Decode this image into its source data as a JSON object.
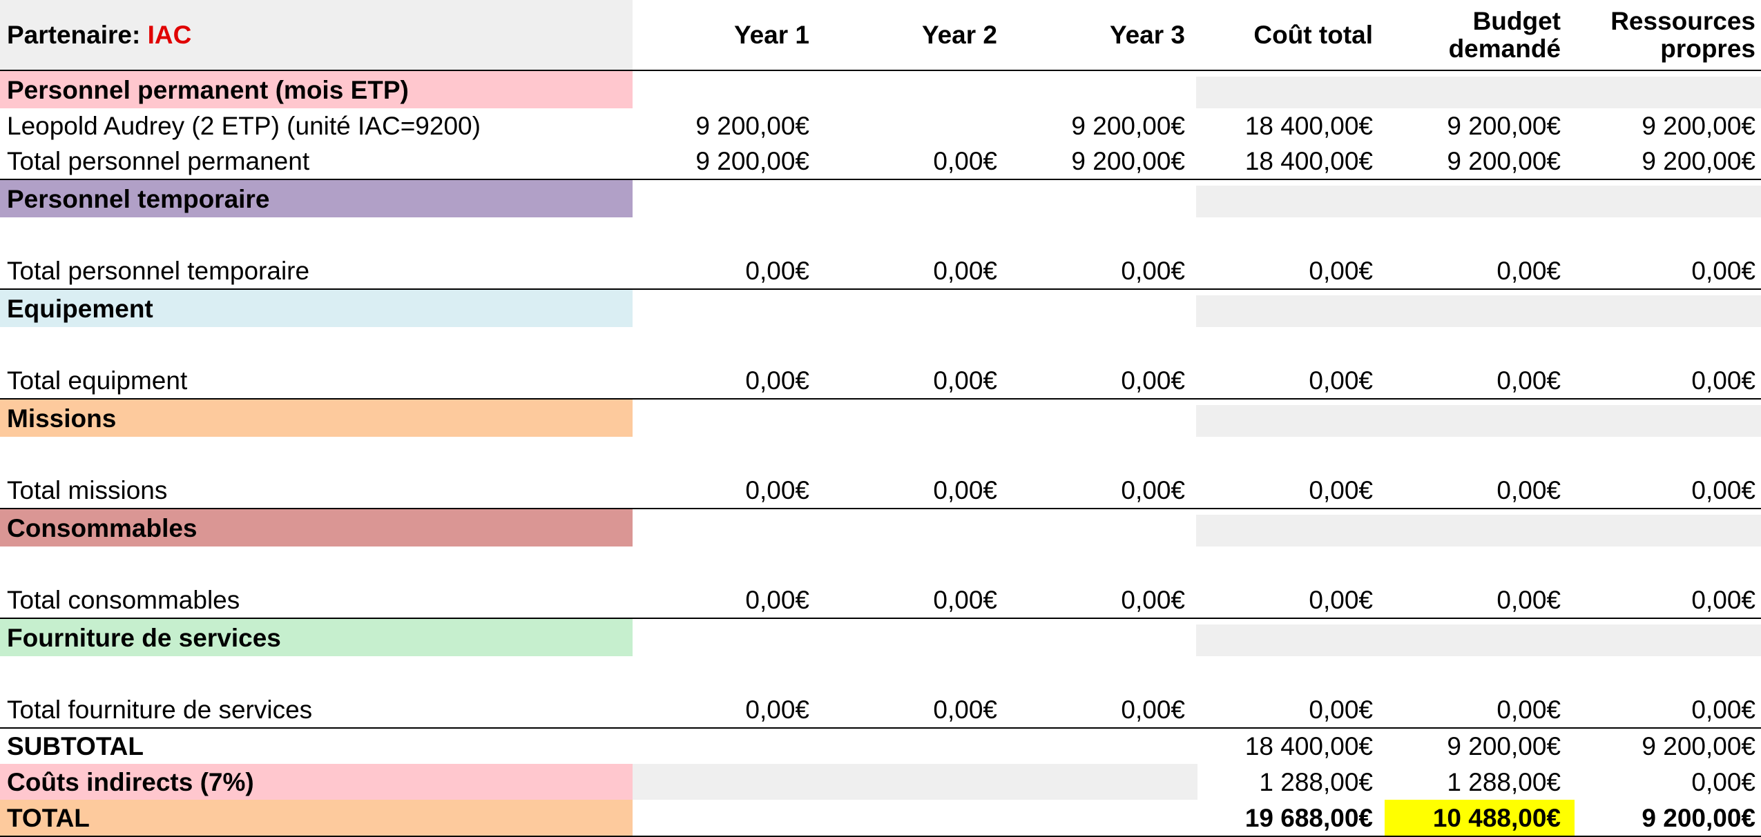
{
  "header": {
    "partner_label": "Partenaire",
    "partner_sep": ": ",
    "partner_name": "IAC",
    "columns": [
      "Year 1",
      "Year 2",
      "Year 3",
      "Coût total",
      "Budget\ndemandé",
      "Ressources\npropres"
    ]
  },
  "colors": {
    "header_bg": "#efefef",
    "partner_name": "#e00000",
    "personnel_permanent": "#ffc7ce",
    "personnel_temporaire": "#b1a0c7",
    "equipement": "#daeef3",
    "missions": "#fdca9d",
    "consommables": "#da9694",
    "fourniture": "#c6efce",
    "couts_indirects": "#ffc7ce",
    "total": "#fdca9d",
    "highlight": "#ffff00",
    "shade": "#efefef"
  },
  "sections": [
    {
      "title": "Personnel permanent (mois ETP)",
      "color_key": "personnel_permanent",
      "items": [
        {
          "label": "Leopold Audrey (2 ETP) (unité IAC=9200)",
          "values": [
            "9 200,00€",
            "",
            "9 200,00€",
            "18 400,00€",
            "9 200,00€",
            "9 200,00€"
          ]
        }
      ],
      "total": {
        "label": "Total personnel permanent",
        "values": [
          "9 200,00€",
          "0,00€",
          "9 200,00€",
          "18 400,00€",
          "9 200,00€",
          "9 200,00€"
        ]
      }
    },
    {
      "title": "Personnel temporaire",
      "color_key": "personnel_temporaire",
      "items": [],
      "total": {
        "label": "Total personnel temporaire",
        "values": [
          "0,00€",
          "0,00€",
          "0,00€",
          "0,00€",
          "0,00€",
          "0,00€"
        ]
      }
    },
    {
      "title": "Equipement",
      "color_key": "equipement",
      "items": [],
      "total": {
        "label": "Total equipment",
        "values": [
          "0,00€",
          "0,00€",
          "0,00€",
          "0,00€",
          "0,00€",
          "0,00€"
        ]
      }
    },
    {
      "title": "Missions",
      "color_key": "missions",
      "items": [],
      "total": {
        "label": "Total missions",
        "values": [
          "0,00€",
          "0,00€",
          "0,00€",
          "0,00€",
          "0,00€",
          "0,00€"
        ]
      }
    },
    {
      "title": "Consommables",
      "color_key": "consommables",
      "items": [],
      "total": {
        "label": "Total consommables",
        "values": [
          "0,00€",
          "0,00€",
          "0,00€",
          "0,00€",
          "0,00€",
          "0,00€"
        ]
      }
    },
    {
      "title": "Fourniture de services",
      "color_key": "fourniture",
      "items": [],
      "total": {
        "label": "Total fourniture de services",
        "values": [
          "0,00€",
          "0,00€",
          "0,00€",
          "0,00€",
          "0,00€",
          "0,00€"
        ]
      }
    }
  ],
  "subtotal": {
    "label": "SUBTOTAL",
    "values": [
      "18 400,00€",
      "9 200,00€",
      "9 200,00€"
    ]
  },
  "indirect": {
    "label": "Coûts indirects (7%)",
    "values": [
      "1 288,00€",
      "1 288,00€",
      "0,00€"
    ]
  },
  "total": {
    "label": "TOTAL",
    "values": [
      "19 688,00€",
      "10 488,00€",
      "9 200,00€"
    ]
  }
}
